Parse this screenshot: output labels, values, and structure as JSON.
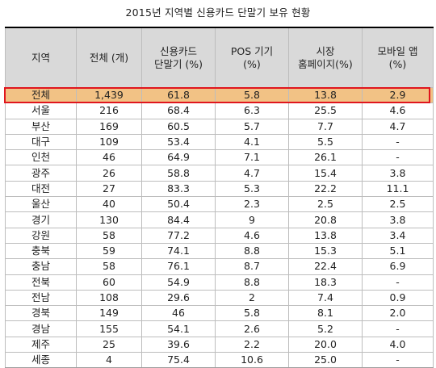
{
  "title": "2015년 지역별 신용카드 단말기 보유 현황",
  "headers": {
    "region": "지역",
    "total": "전체 (개)",
    "card_terminal": "신용카드\n단말기 (%)",
    "pos": "POS 기기\n(%)",
    "homepage": "시장\n홈페이지(%)",
    "mobile": "모바일 앱\n(%)"
  },
  "rows": [
    {
      "region": "전체",
      "total": "1,439",
      "card": "61.8",
      "pos": "5.8",
      "home": "13.8",
      "mobile": "2.9"
    },
    {
      "region": "서울",
      "total": "216",
      "card": "68.4",
      "pos": "6.3",
      "home": "25.5",
      "mobile": "4.6"
    },
    {
      "region": "부산",
      "total": "169",
      "card": "60.5",
      "pos": "5.7",
      "home": "7.7",
      "mobile": "4.7"
    },
    {
      "region": "대구",
      "total": "109",
      "card": "53.4",
      "pos": "4.1",
      "home": "5.5",
      "mobile": "-"
    },
    {
      "region": "인천",
      "total": "46",
      "card": "64.9",
      "pos": "7.1",
      "home": "26.1",
      "mobile": "-"
    },
    {
      "region": "광주",
      "total": "26",
      "card": "58.8",
      "pos": "4.7",
      "home": "15.4",
      "mobile": "3.8"
    },
    {
      "region": "대전",
      "total": "27",
      "card": "83.3",
      "pos": "5.3",
      "home": "22.2",
      "mobile": "11.1"
    },
    {
      "region": "울산",
      "total": "40",
      "card": "50.4",
      "pos": "2.3",
      "home": "2.5",
      "mobile": "2.5"
    },
    {
      "region": "경기",
      "total": "130",
      "card": "84.4",
      "pos": "9",
      "home": "20.8",
      "mobile": "3.8"
    },
    {
      "region": "강원",
      "total": "58",
      "card": "77.2",
      "pos": "4.6",
      "home": "13.8",
      "mobile": "3.4"
    },
    {
      "region": "충북",
      "total": "59",
      "card": "74.1",
      "pos": "8.8",
      "home": "15.3",
      "mobile": "5.1"
    },
    {
      "region": "충남",
      "total": "58",
      "card": "76.1",
      "pos": "8.7",
      "home": "22.4",
      "mobile": "6.9"
    },
    {
      "region": "전북",
      "total": "60",
      "card": "54.9",
      "pos": "8.8",
      "home": "18.3",
      "mobile": "-"
    },
    {
      "region": "전남",
      "total": "108",
      "card": "29.6",
      "pos": "2",
      "home": "7.4",
      "mobile": "0.9"
    },
    {
      "region": "경북",
      "total": "149",
      "card": "46",
      "pos": "5.8",
      "home": "8.1",
      "mobile": "2.0"
    },
    {
      "region": "경남",
      "total": "155",
      "card": "54.1",
      "pos": "2.6",
      "home": "5.2",
      "mobile": "-"
    },
    {
      "region": "제주",
      "total": "25",
      "card": "39.6",
      "pos": "2.2",
      "home": "20.0",
      "mobile": "4.0"
    },
    {
      "region": "세종",
      "total": "4",
      "card": "75.4",
      "pos": "10.6",
      "home": "25.0",
      "mobile": "-"
    }
  ],
  "colors": {
    "header_bg": "#d9d9d9",
    "highlight_bg": "#f2c285",
    "highlight_border": "#e0161e"
  }
}
